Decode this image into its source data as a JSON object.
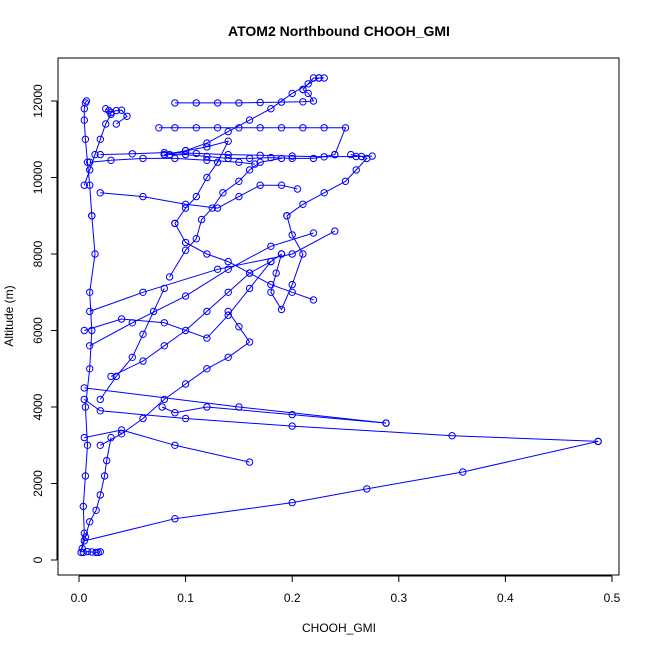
{
  "chart_data": {
    "type": "line",
    "title": "ATOM2 Northbound CHOOH_GMI",
    "xlabel": "CHOOH_GMI",
    "ylabel": "Altitude (m)",
    "xlim": [
      0,
      0.5
    ],
    "ylim": [
      0,
      12600
    ],
    "x_ticks": [
      "0.0",
      "0.1",
      "0.2",
      "0.3",
      "0.4",
      "0.5"
    ],
    "y_ticks": [
      "0",
      "2000",
      "4000",
      "6000",
      "8000",
      "10000",
      "12000"
    ],
    "grid": false,
    "colors": {
      "series": "#0000ff",
      "axes": "#000000"
    },
    "marker": "open-circle",
    "series": [
      {
        "x": [
          0.002,
          0.005,
          0.004,
          0.006,
          0.008,
          0.006,
          0.01,
          0.012,
          0.01,
          0.015,
          0.012
        ],
        "y": [
          200,
          700,
          1400,
          2200,
          3000,
          4000,
          5000,
          6000,
          7000,
          8000,
          9000
        ]
      },
      {
        "x": [
          0.012,
          0.01,
          0.008,
          0.006,
          0.005,
          0.005,
          0.006,
          0.007
        ],
        "y": [
          9000,
          9800,
          10400,
          11000,
          11500,
          11800,
          11950,
          12000
        ]
      },
      {
        "x": [
          0.004,
          0.008,
          0.012,
          0.016,
          0.02,
          0.018
        ],
        "y": [
          200,
          220,
          210,
          200,
          215,
          200
        ]
      },
      {
        "x": [
          0.003,
          0.006,
          0.01,
          0.016,
          0.02,
          0.024,
          0.026,
          0.03
        ],
        "y": [
          300,
          600,
          1000,
          1300,
          1700,
          2200,
          2600,
          3200
        ]
      },
      {
        "x": [
          0.02,
          0.035,
          0.05,
          0.06,
          0.07,
          0.08
        ],
        "y": [
          4200,
          4800,
          5300,
          5900,
          6500,
          7100
        ]
      },
      {
        "x": [
          0.085,
          0.1,
          0.11,
          0.115,
          0.125,
          0.135,
          0.15,
          0.16,
          0.17,
          0.19
        ],
        "y": [
          7400,
          8100,
          8400,
          8900,
          9200,
          9600,
          9900,
          10200,
          10400,
          10500
        ]
      },
      {
        "x": [
          0.005,
          0.04,
          0.09,
          0.16
        ],
        "y": [
          3200,
          3400,
          3000,
          2560
        ]
      },
      {
        "x": [
          0.005,
          0.09,
          0.2,
          0.27,
          0.36,
          0.487
        ],
        "y": [
          500,
          1080,
          1500,
          1860,
          2300,
          3100
        ]
      },
      {
        "x": [
          0.487,
          0.35,
          0.2,
          0.1,
          0.02,
          0.005
        ],
        "y": [
          3100,
          3250,
          3500,
          3700,
          3900,
          4200
        ]
      },
      {
        "x": [
          0.005,
          0.15,
          0.288
        ],
        "y": [
          4500,
          4000,
          3580
        ]
      },
      {
        "x": [
          0.288,
          0.2,
          0.12,
          0.09,
          0.078
        ],
        "y": [
          3580,
          3800,
          4000,
          3850,
          4000
        ]
      },
      {
        "x": [
          0.01,
          0.05,
          0.1,
          0.14,
          0.18,
          0.22
        ],
        "y": [
          5600,
          6200,
          6900,
          7600,
          8200,
          8550
        ]
      },
      {
        "x": [
          0.01,
          0.06,
          0.13,
          0.2,
          0.24
        ],
        "y": [
          6500,
          7000,
          7600,
          8000,
          8600
        ]
      },
      {
        "x": [
          0.005,
          0.04,
          0.08,
          0.12,
          0.14,
          0.16,
          0.18,
          0.19
        ],
        "y": [
          6000,
          6300,
          6200,
          5800,
          6400,
          7100,
          7800,
          8000
        ]
      },
      {
        "x": [
          0.19,
          0.185,
          0.18,
          0.19,
          0.2,
          0.21,
          0.2,
          0.195
        ],
        "y": [
          8000,
          7500,
          7000,
          6550,
          7200,
          8000,
          8500,
          9000
        ]
      },
      {
        "x": [
          0.195,
          0.21,
          0.23,
          0.25,
          0.26,
          0.27,
          0.265,
          0.255
        ],
        "y": [
          9000,
          9300,
          9600,
          9900,
          10200,
          10500,
          10550,
          10600
        ]
      },
      {
        "x": [
          0.09,
          0.11,
          0.13,
          0.15,
          0.17,
          0.19,
          0.21,
          0.22,
          0.215,
          0.21
        ],
        "y": [
          11950,
          11950,
          11950,
          11950,
          11960,
          11970,
          11980,
          12000,
          12200,
          12300
        ]
      },
      {
        "x": [
          0.21,
          0.215,
          0.22,
          0.225,
          0.23
        ],
        "y": [
          12300,
          12450,
          12600,
          12600,
          12600
        ]
      },
      {
        "x": [
          0.225,
          0.2,
          0.18,
          0.16,
          0.14,
          0.12,
          0.1,
          0.085
        ],
        "y": [
          12600,
          12200,
          11800,
          11500,
          11200,
          10900,
          10700,
          10600
        ]
      },
      {
        "x": [
          0.075,
          0.09,
          0.11,
          0.13,
          0.15,
          0.17,
          0.19,
          0.21,
          0.23,
          0.25,
          0.24
        ],
        "y": [
          11300,
          11300,
          11300,
          11300,
          11300,
          11300,
          11300,
          11300,
          11300,
          11300,
          10600
        ]
      },
      {
        "x": [
          0.24,
          0.22,
          0.2,
          0.18,
          0.16,
          0.14,
          0.12,
          0.1,
          0.08
        ],
        "y": [
          10600,
          10500,
          10500,
          10520,
          10500,
          10500,
          10550,
          10600,
          10600
        ]
      },
      {
        "x": [
          0.08,
          0.1,
          0.12,
          0.14,
          0.13,
          0.12,
          0.11,
          0.1,
          0.09
        ],
        "y": [
          10600,
          10700,
          10800,
          10950,
          10400,
          10000,
          9500,
          9200,
          8800
        ]
      },
      {
        "x": [
          0.09,
          0.1,
          0.12,
          0.14,
          0.16,
          0.18,
          0.2,
          0.22
        ],
        "y": [
          8800,
          8300,
          8000,
          7800,
          7500,
          7200,
          7000,
          6800
        ]
      },
      {
        "x": [
          0.02,
          0.06,
          0.1,
          0.13,
          0.15,
          0.17,
          0.19,
          0.205
        ],
        "y": [
          9600,
          9500,
          9300,
          9200,
          9500,
          9800,
          9800,
          9700
        ]
      },
      {
        "x": [
          0.01,
          0.03,
          0.06,
          0.09,
          0.12,
          0.15,
          0.165
        ],
        "y": [
          10400,
          10450,
          10500,
          10500,
          10450,
          10400,
          10350
        ]
      },
      {
        "x": [
          0.02,
          0.05,
          0.08,
          0.11,
          0.14,
          0.17,
          0.2,
          0.23,
          0.26,
          0.275
        ],
        "y": [
          10600,
          10620,
          10650,
          10630,
          10600,
          10580,
          10560,
          10540,
          10550,
          10560
        ]
      },
      {
        "x": [
          0.03,
          0.06,
          0.08,
          0.1,
          0.12,
          0.14,
          0.16,
          0.18
        ],
        "y": [
          4800,
          5200,
          5600,
          6000,
          6500,
          7000,
          7500,
          7800
        ]
      },
      {
        "x": [
          0.02,
          0.04,
          0.06,
          0.08,
          0.1,
          0.12,
          0.14,
          0.16,
          0.15,
          0.14
        ],
        "y": [
          3000,
          3300,
          3700,
          4200,
          4600,
          5000,
          5300,
          5700,
          6100,
          6500
        ]
      },
      {
        "x": [
          0.005,
          0.01,
          0.015,
          0.02,
          0.025,
          0.03,
          0.028,
          0.025
        ],
        "y": [
          9800,
          10200,
          10600,
          11000,
          11400,
          11650,
          11750,
          11800
        ]
      },
      {
        "x": [
          0.03,
          0.035,
          0.04,
          0.045,
          0.035
        ],
        "y": [
          11700,
          11750,
          11760,
          11600,
          11400
        ]
      }
    ]
  }
}
